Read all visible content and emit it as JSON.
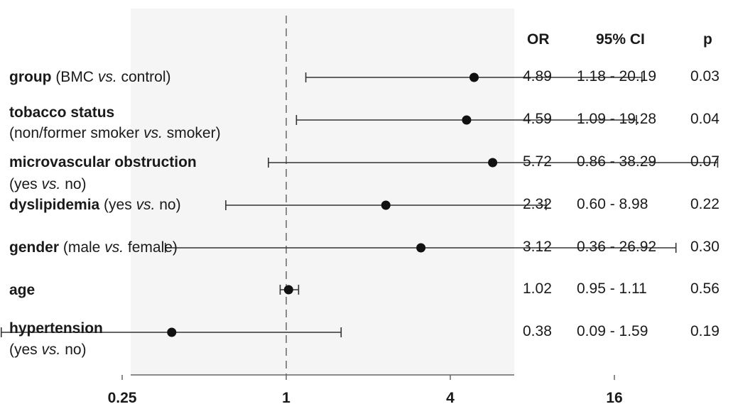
{
  "chart_data": {
    "type": "forest",
    "x_scale": "log2",
    "xlim": [
      0.09,
      40
    ],
    "reference_line": 1,
    "x_ticks": [
      "0.25",
      "1",
      "4",
      "16"
    ],
    "x_tick_values": [
      0.25,
      1,
      4,
      16
    ],
    "columns": {
      "or": "OR",
      "ci": "95% CI",
      "p": "p"
    },
    "rows": [
      {
        "bold": "group",
        "rest": [
          " (BMC ",
          {
            "i": "vs."
          },
          " control)"
        ],
        "or": 4.89,
        "lo": 1.18,
        "hi": 20.19,
        "or_text": "4.89",
        "ci_text": "1.18 - 20.19",
        "p_text": "0.03"
      },
      {
        "bold": "tobacco status",
        "rest": [],
        "line2": [
          "(non/former smoker ",
          {
            "i": "vs."
          },
          " smoker)"
        ],
        "or": 4.59,
        "lo": 1.09,
        "hi": 19.28,
        "or_text": "4.59",
        "ci_text": "1.09 - 19.28",
        "p_text": "0.04"
      },
      {
        "bold": "microvascular obstruction",
        "rest": [],
        "line2": [
          "(yes ",
          {
            "i": "vs."
          },
          " no)"
        ],
        "or": 5.72,
        "lo": 0.86,
        "hi": 38.29,
        "or_text": "5.72",
        "ci_text": "0.86 - 38.29",
        "p_text": "0.07"
      },
      {
        "bold": "dyslipidemia",
        "rest": [
          " (yes ",
          {
            "i": "vs."
          },
          " no)"
        ],
        "or": 2.32,
        "lo": 0.6,
        "hi": 8.98,
        "or_text": "2.32",
        "ci_text": "0.60 - 8.98",
        "p_text": "0.22"
      },
      {
        "bold": "gender",
        "rest": [
          " (male ",
          {
            "i": "vs."
          },
          " female)"
        ],
        "or": 3.12,
        "lo": 0.36,
        "hi": 26.92,
        "or_text": "3.12",
        "ci_text": "0.36 - 26.92",
        "p_text": "0.30"
      },
      {
        "bold": "age",
        "rest": [],
        "or": 1.02,
        "lo": 0.95,
        "hi": 1.11,
        "or_text": "1.02",
        "ci_text": "0.95 - 1.11",
        "p_text": "0.56"
      },
      {
        "bold": "hypertension",
        "rest": [],
        "line2": [
          "(yes ",
          {
            "i": "vs."
          },
          " no)"
        ],
        "or": 0.38,
        "lo": 0.09,
        "hi": 1.59,
        "or_text": "0.38",
        "ci_text": "0.09 - 1.59",
        "p_text": "0.19"
      }
    ]
  }
}
